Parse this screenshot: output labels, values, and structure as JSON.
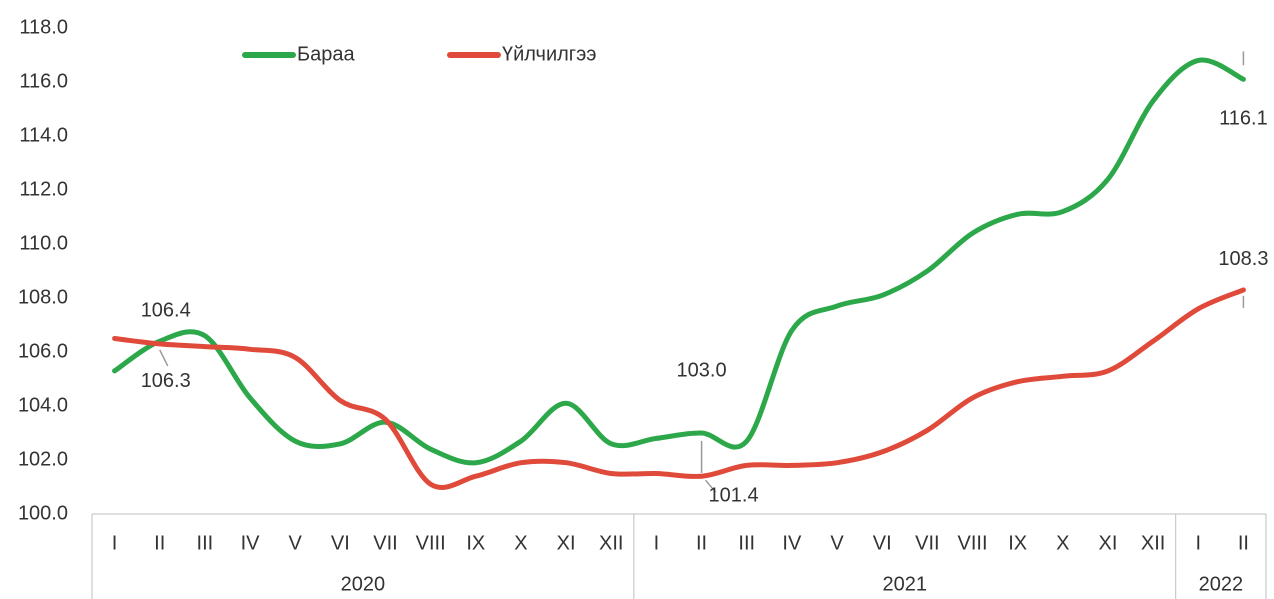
{
  "chart_data": {
    "type": "line",
    "categories": [
      "I",
      "II",
      "III",
      "IV",
      "V",
      "VI",
      "VII",
      "VIII",
      "IX",
      "X",
      "XI",
      "XII",
      "I",
      "II",
      "III",
      "IV",
      "V",
      "VI",
      "VII",
      "VIII",
      "IX",
      "X",
      "XI",
      "XII",
      "I",
      "II"
    ],
    "groups": [
      {
        "label": "2020",
        "span": 12
      },
      {
        "label": "2021",
        "span": 12
      },
      {
        "label": "2022",
        "span": 2
      }
    ],
    "series": [
      {
        "name": "Бараа",
        "color": "#2ca84a",
        "values": [
          105.3,
          106.4,
          106.6,
          104.3,
          102.7,
          102.6,
          103.4,
          102.4,
          101.9,
          102.7,
          104.1,
          102.6,
          102.8,
          103.0,
          102.7,
          106.8,
          107.7,
          108.1,
          109.0,
          110.4,
          111.1,
          111.2,
          112.4,
          115.3,
          116.8,
          116.1
        ],
        "value_labels": [
          null,
          "106.4",
          null,
          null,
          null,
          null,
          null,
          null,
          null,
          null,
          null,
          null,
          null,
          "103.0",
          null,
          null,
          null,
          null,
          null,
          null,
          null,
          null,
          null,
          null,
          null,
          "116.1"
        ]
      },
      {
        "name": "Үйлчилгээ",
        "color": "#e04a3a",
        "values": [
          106.5,
          106.3,
          106.2,
          106.1,
          105.8,
          104.2,
          103.5,
          101.1,
          101.4,
          101.9,
          101.9,
          101.5,
          101.5,
          101.4,
          101.8,
          101.8,
          101.9,
          102.3,
          103.1,
          104.3,
          104.9,
          105.1,
          105.3,
          106.4,
          107.6,
          108.3
        ],
        "value_labels": [
          null,
          "106.3",
          null,
          null,
          null,
          null,
          null,
          null,
          null,
          null,
          null,
          null,
          null,
          "101.4",
          null,
          null,
          null,
          null,
          null,
          null,
          null,
          null,
          null,
          null,
          null,
          "108.3"
        ]
      }
    ],
    "ylim": [
      100,
      118
    ],
    "yticks": [
      {
        "value": 100,
        "label": "100.0"
      },
      {
        "value": 102,
        "label": "102.0"
      },
      {
        "value": 104,
        "label": "104.0"
      },
      {
        "value": 106,
        "label": "106.0"
      },
      {
        "value": 108,
        "label": "108.0"
      },
      {
        "value": 110,
        "label": "110.0"
      },
      {
        "value": 112,
        "label": "112.0"
      },
      {
        "value": 114,
        "label": "114.0"
      },
      {
        "value": 116,
        "label": "116.0"
      },
      {
        "value": 118,
        "label": "118.0"
      }
    ],
    "grid": false,
    "legend": "top"
  }
}
